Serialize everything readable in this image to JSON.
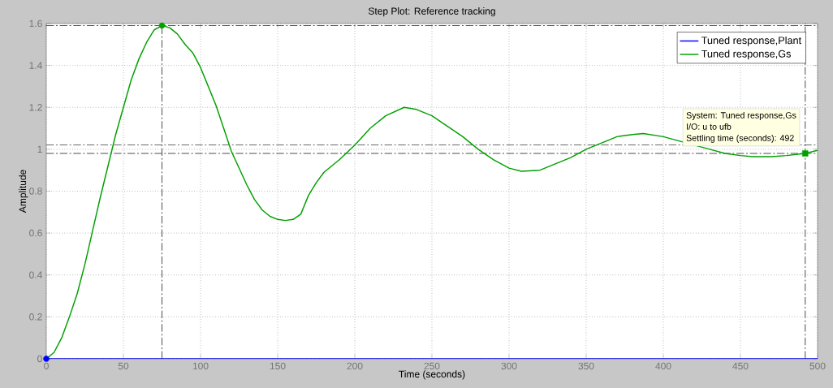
{
  "chart_data": {
    "type": "line",
    "title": "Step Plot: Reference tracking",
    "xlabel": "Time (seconds)",
    "ylabel": "Amplitude",
    "xlim": [
      0,
      500
    ],
    "ylim": [
      0,
      1.6
    ],
    "xticks": [
      0,
      50,
      100,
      150,
      200,
      250,
      300,
      350,
      400,
      450,
      500
    ],
    "yticks": [
      0,
      0.2,
      0.4,
      0.6,
      0.8,
      1,
      1.2,
      1.4,
      1.6
    ],
    "grid": true,
    "legend": "top right",
    "series": [
      {
        "name": "Tuned response,Plant",
        "color": "#0000ff",
        "x": [
          0,
          500
        ],
        "values": [
          0,
          0
        ]
      },
      {
        "name": "Tuned response,Gs",
        "color": "#00a000",
        "x": [
          0,
          5,
          10,
          15,
          20,
          25,
          30,
          35,
          40,
          45,
          50,
          55,
          60,
          65,
          70,
          75,
          80,
          85,
          90,
          95,
          100,
          105,
          110,
          115,
          120,
          125,
          130,
          135,
          140,
          145,
          150,
          155,
          160,
          165,
          170,
          175,
          180,
          190,
          200,
          210,
          220,
          232,
          240,
          250,
          260,
          270,
          280,
          290,
          300,
          308,
          320,
          330,
          340,
          350,
          360,
          370,
          380,
          387,
          400,
          410,
          420,
          430,
          440,
          450,
          458,
          470,
          480,
          492,
          500
        ],
        "values": [
          0,
          0.03,
          0.1,
          0.2,
          0.31,
          0.45,
          0.61,
          0.77,
          0.92,
          1.07,
          1.2,
          1.33,
          1.43,
          1.51,
          1.57,
          1.59,
          1.58,
          1.55,
          1.5,
          1.46,
          1.39,
          1.3,
          1.21,
          1.1,
          0.99,
          0.91,
          0.83,
          0.76,
          0.71,
          0.68,
          0.665,
          0.66,
          0.665,
          0.69,
          0.78,
          0.84,
          0.89,
          0.95,
          1.02,
          1.1,
          1.16,
          1.2,
          1.19,
          1.16,
          1.11,
          1.06,
          1.0,
          0.95,
          0.91,
          0.895,
          0.9,
          0.93,
          0.96,
          1.0,
          1.03,
          1.06,
          1.07,
          1.075,
          1.06,
          null,
          null,
          1.0,
          0.98,
          0.97,
          0.965,
          0.965,
          0.97,
          0.98,
          0.995
        ]
      },
      {
        "type": "scatter",
        "color": "#00a000",
        "marker": "circle",
        "x": [
          75
        ],
        "values": [
          1.59
        ]
      },
      {
        "type": "scatter",
        "color": "#00a000",
        "marker": "square",
        "x": [
          492
        ],
        "values": [
          0.98
        ]
      },
      {
        "type": "scatter",
        "color": "#0000ff",
        "marker": "circle",
        "x": [
          0
        ],
        "values": [
          0
        ]
      }
    ],
    "ref_lines": [
      {
        "axis": "y",
        "value": 1.02,
        "line_style": "dashdot"
      },
      {
        "axis": "y",
        "value": 0.98,
        "line_style": "dashdot"
      },
      {
        "axis": "y",
        "value": 1.59,
        "line_style": "dashdot"
      },
      {
        "axis": "x",
        "value": 75,
        "line_style": "dashdot"
      },
      {
        "axis": "x",
        "value": 492,
        "line_style": "dashdot"
      }
    ],
    "annotations": [
      "System: Tuned response,Gs",
      "I/O: u to ufb",
      "Settling time (seconds): 492"
    ]
  }
}
